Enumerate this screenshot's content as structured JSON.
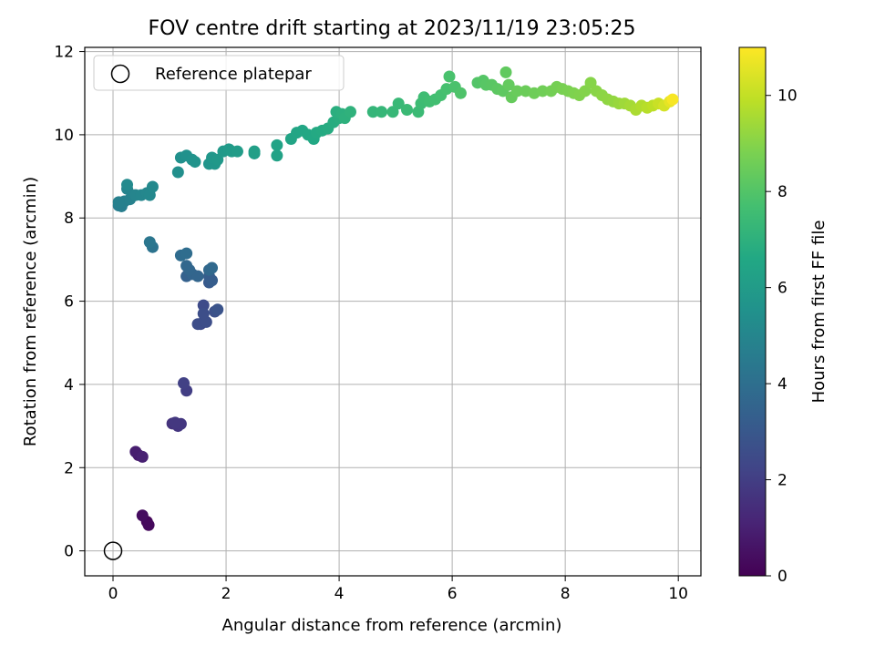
{
  "chart_data": {
    "type": "scatter",
    "title": "FOV centre drift starting at 2023/11/19 23:05:25",
    "xlabel": "Angular distance from reference (arcmin)",
    "ylabel": "Rotation from reference (arcmin)",
    "xlim": [
      -0.5,
      10.4
    ],
    "ylim": [
      -0.6,
      12.1
    ],
    "xticks": [
      "0",
      "2",
      "4",
      "6",
      "8",
      "10"
    ],
    "yticks": [
      "0",
      "2",
      "4",
      "6",
      "8",
      "10",
      "12"
    ],
    "grid": true,
    "legend": {
      "placement": "top-left",
      "entries": [
        "Reference platepar"
      ]
    },
    "reference_point": {
      "x": 0,
      "y": 0,
      "label": "Reference platepar",
      "marker": "open-circle"
    },
    "colorbar": {
      "label": "Hours from first FF file",
      "colormap": "viridis",
      "range": [
        0,
        11
      ],
      "ticks": [
        "0",
        "2",
        "4",
        "6",
        "8",
        "10"
      ]
    },
    "points": [
      [
        0.6,
        0.7,
        0.15
      ],
      [
        0.63,
        0.62,
        0.25
      ],
      [
        0.52,
        0.85,
        0.35
      ],
      [
        0.45,
        2.3,
        0.8
      ],
      [
        0.4,
        2.38,
        0.9
      ],
      [
        0.52,
        2.26,
        1.0
      ],
      [
        1.05,
        3.06,
        1.6
      ],
      [
        1.15,
        3.0,
        1.7
      ],
      [
        1.2,
        3.05,
        1.75
      ],
      [
        1.1,
        3.08,
        1.8
      ],
      [
        1.3,
        3.85,
        2.0
      ],
      [
        1.25,
        4.03,
        2.1
      ],
      [
        1.55,
        5.45,
        2.4
      ],
      [
        1.6,
        5.5,
        2.5
      ],
      [
        1.5,
        5.45,
        2.55
      ],
      [
        1.65,
        5.5,
        2.6
      ],
      [
        1.6,
        5.9,
        2.5
      ],
      [
        1.6,
        5.7,
        2.6
      ],
      [
        1.8,
        5.75,
        2.7
      ],
      [
        1.85,
        5.8,
        2.8
      ],
      [
        1.7,
        6.45,
        3.1
      ],
      [
        1.75,
        6.5,
        3.2
      ],
      [
        1.7,
        6.6,
        3.2
      ],
      [
        1.3,
        6.6,
        3.4
      ],
      [
        1.4,
        6.65,
        3.5
      ],
      [
        1.5,
        6.6,
        3.55
      ],
      [
        1.35,
        6.75,
        3.6
      ],
      [
        1.3,
        6.85,
        3.65
      ],
      [
        1.7,
        6.75,
        3.7
      ],
      [
        1.75,
        6.8,
        3.75
      ],
      [
        1.2,
        7.1,
        3.85
      ],
      [
        1.3,
        7.15,
        3.9
      ],
      [
        0.7,
        7.3,
        4.2
      ],
      [
        0.65,
        7.42,
        4.3
      ],
      [
        0.1,
        8.3,
        4.6
      ],
      [
        0.15,
        8.28,
        4.65
      ],
      [
        0.2,
        8.4,
        4.7
      ],
      [
        0.1,
        8.38,
        4.75
      ],
      [
        0.3,
        8.45,
        4.8
      ],
      [
        0.35,
        8.55,
        4.85
      ],
      [
        0.25,
        8.7,
        4.9
      ],
      [
        0.4,
        8.55,
        4.95
      ],
      [
        0.5,
        8.55,
        5.0
      ],
      [
        0.6,
        8.6,
        5.05
      ],
      [
        0.65,
        8.55,
        5.1
      ],
      [
        0.7,
        8.75,
        5.15
      ],
      [
        0.25,
        8.8,
        5.2
      ],
      [
        1.15,
        9.1,
        5.4
      ],
      [
        1.2,
        9.45,
        5.45
      ],
      [
        1.3,
        9.5,
        5.5
      ],
      [
        1.4,
        9.4,
        5.55
      ],
      [
        1.45,
        9.35,
        5.6
      ],
      [
        1.7,
        9.3,
        5.7
      ],
      [
        1.8,
        9.3,
        5.75
      ],
      [
        1.75,
        9.45,
        5.8
      ],
      [
        1.85,
        9.4,
        5.85
      ],
      [
        1.95,
        9.6,
        5.9
      ],
      [
        2.05,
        9.65,
        5.95
      ],
      [
        2.1,
        9.6,
        6.0
      ],
      [
        2.2,
        9.6,
        6.05
      ],
      [
        2.5,
        9.55,
        6.1
      ],
      [
        2.5,
        9.6,
        6.15
      ],
      [
        2.9,
        9.5,
        6.3
      ],
      [
        2.9,
        9.75,
        6.35
      ],
      [
        3.15,
        9.9,
        6.4
      ],
      [
        3.25,
        10.05,
        6.45
      ],
      [
        3.35,
        10.1,
        6.5
      ],
      [
        3.45,
        10.0,
        6.55
      ],
      [
        3.55,
        9.9,
        6.6
      ],
      [
        3.6,
        10.05,
        6.65
      ],
      [
        3.7,
        10.1,
        6.7
      ],
      [
        3.8,
        10.15,
        6.75
      ],
      [
        3.9,
        10.3,
        6.8
      ],
      [
        4.0,
        10.4,
        6.85
      ],
      [
        3.95,
        10.55,
        6.9
      ],
      [
        4.05,
        10.5,
        6.95
      ],
      [
        4.1,
        10.4,
        7.0
      ],
      [
        4.2,
        10.55,
        7.05
      ],
      [
        4.6,
        10.55,
        7.2
      ],
      [
        4.75,
        10.55,
        7.25
      ],
      [
        4.95,
        10.55,
        7.3
      ],
      [
        5.05,
        10.75,
        7.35
      ],
      [
        5.2,
        10.6,
        7.4
      ],
      [
        5.4,
        10.55,
        7.45
      ],
      [
        5.45,
        10.75,
        7.5
      ],
      [
        5.5,
        10.9,
        7.55
      ],
      [
        5.6,
        10.8,
        7.6
      ],
      [
        5.7,
        10.85,
        7.65
      ],
      [
        5.8,
        10.95,
        7.7
      ],
      [
        5.9,
        11.1,
        7.75
      ],
      [
        5.95,
        11.4,
        7.8
      ],
      [
        6.05,
        11.15,
        7.85
      ],
      [
        6.15,
        11.0,
        7.9
      ],
      [
        6.45,
        11.25,
        8.0
      ],
      [
        6.55,
        11.3,
        8.05
      ],
      [
        6.6,
        11.2,
        8.1
      ],
      [
        6.7,
        11.2,
        8.15
      ],
      [
        6.8,
        11.1,
        8.2
      ],
      [
        6.9,
        11.05,
        8.25
      ],
      [
        6.95,
        11.5,
        8.3
      ],
      [
        7.0,
        11.2,
        8.35
      ],
      [
        7.05,
        10.9,
        8.4
      ],
      [
        7.15,
        11.05,
        8.45
      ],
      [
        7.3,
        11.05,
        8.5
      ],
      [
        7.45,
        11.0,
        8.55
      ],
      [
        7.6,
        11.05,
        8.6
      ],
      [
        7.75,
        11.05,
        8.65
      ],
      [
        7.85,
        11.15,
        8.7
      ],
      [
        7.95,
        11.1,
        8.75
      ],
      [
        8.05,
        11.05,
        8.8
      ],
      [
        8.15,
        11.0,
        8.85
      ],
      [
        8.25,
        10.95,
        8.9
      ],
      [
        8.35,
        11.05,
        8.95
      ],
      [
        8.45,
        11.25,
        9.0
      ],
      [
        8.55,
        11.05,
        9.05
      ],
      [
        8.65,
        10.95,
        9.1
      ],
      [
        8.75,
        10.85,
        9.15
      ],
      [
        8.85,
        10.8,
        9.2
      ],
      [
        8.95,
        10.75,
        9.3
      ],
      [
        9.05,
        10.75,
        9.4
      ],
      [
        9.15,
        10.7,
        9.5
      ],
      [
        9.25,
        10.6,
        9.6
      ],
      [
        9.35,
        10.7,
        9.7
      ],
      [
        9.45,
        10.65,
        9.8
      ],
      [
        9.55,
        10.7,
        9.9
      ],
      [
        9.65,
        10.75,
        10.1
      ],
      [
        9.75,
        10.7,
        10.3
      ],
      [
        9.85,
        10.8,
        10.6
      ],
      [
        9.9,
        10.85,
        10.9
      ]
    ]
  }
}
